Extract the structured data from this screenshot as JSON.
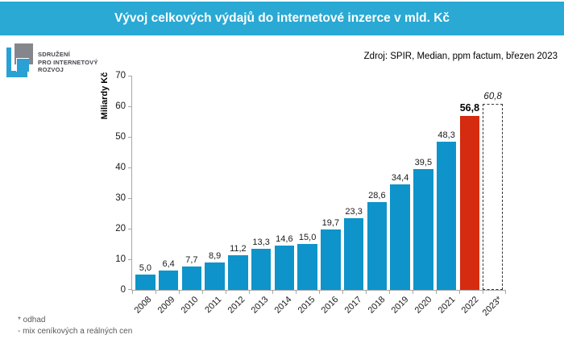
{
  "title": "Vývoj celkových výdajů do internetové inzerce v mld. Kč",
  "logo": {
    "lines": [
      "SDRUŽENÍ",
      "PRO INTERNETOVÝ",
      "ROZVOJ"
    ]
  },
  "source": {
    "text": "Zdroj: SPIR, Median, ppm factum, březen 2023"
  },
  "footnotes": [
    "* odhad",
    "- mix ceníkových a reálných cen"
  ],
  "colors": {
    "titlebar_bg": "#29A9D4",
    "bar_blue": "#0E94CA",
    "bar_red": "#D52B10",
    "axis_gray": "#A6A6A6",
    "footnote_gray": "#595959",
    "logo_gray": "#85868B",
    "logo_blue": "#2AA0D5"
  },
  "chart_data": {
    "type": "bar",
    "title": "Vývoj celkových výdajů do internetové inzerce v mld. Kč",
    "xlabel": "",
    "ylabel": "Miliardy Kč",
    "ylim": [
      0,
      70
    ],
    "ytick_step": 10,
    "grid": false,
    "legend_position": "none",
    "categories": [
      "2008",
      "2009",
      "2010",
      "2011",
      "2012",
      "2013",
      "2014",
      "2015",
      "2016",
      "2017",
      "2018",
      "2019",
      "2020",
      "2021",
      "2022",
      "2023*"
    ],
    "values": [
      5.0,
      6.4,
      7.7,
      8.9,
      11.2,
      13.3,
      14.6,
      15.0,
      19.7,
      23.3,
      28.6,
      34.4,
      39.5,
      48.3,
      56.8,
      60.8
    ],
    "value_labels": [
      "5,0",
      "6,4",
      "7,7",
      "8,9",
      "11,2",
      "13,3",
      "14,6",
      "15,0",
      "19,7",
      "23,3",
      "28,6",
      "34,4",
      "39,5",
      "48,3",
      "56,8",
      "60,8"
    ],
    "highlight_index": 14,
    "forecast_index": 15
  }
}
